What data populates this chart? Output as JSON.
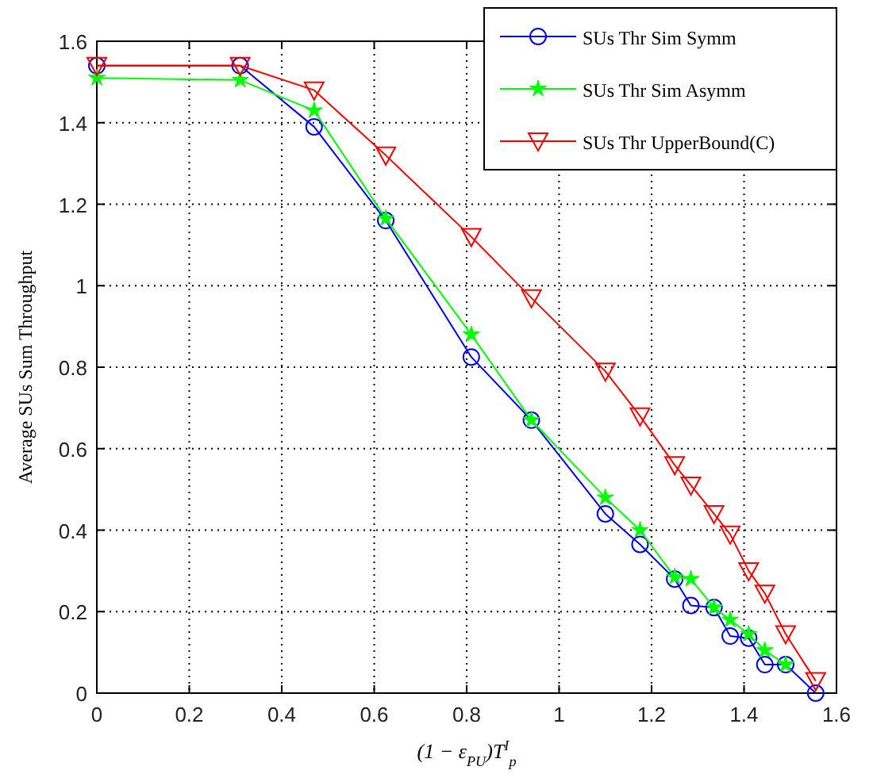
{
  "chart_data": {
    "type": "line",
    "xlabel": "(1 − ε$_{PU}$)T$^{I}$$_{p}$",
    "ylabel": "Average SUs Sum Throughput",
    "xlim": [
      0,
      1.6
    ],
    "ylim": [
      0,
      1.6
    ],
    "xticks": [
      0,
      0.2,
      0.4,
      0.6,
      0.8,
      1,
      1.2,
      1.4,
      1.6
    ],
    "yticks": [
      0,
      0.2,
      0.4,
      0.6,
      0.8,
      1,
      1.2,
      1.4,
      1.6
    ],
    "grid": true,
    "legend": "top right",
    "line_style": "solid",
    "series": [
      {
        "name": "SUs Thr Sim Symm",
        "color": "#0000ff",
        "marker": "circle",
        "x": [
          0,
          0.31,
          0.47,
          0.625,
          0.81,
          0.94,
          1.1,
          1.175,
          1.25,
          1.285,
          1.335,
          1.37,
          1.41,
          1.445,
          1.49,
          1.555
        ],
        "values": [
          1.54,
          1.54,
          1.39,
          1.16,
          0.825,
          0.67,
          0.44,
          0.365,
          0.28,
          0.215,
          0.21,
          0.14,
          0.135,
          0.07,
          0.07,
          0.0
        ]
      },
      {
        "name": "SUs Thr Sim Asymm",
        "color": "#00ff00",
        "marker": "star",
        "x": [
          0,
          0.31,
          0.47,
          0.625,
          0.81,
          0.94,
          1.1,
          1.175,
          1.25,
          1.285,
          1.335,
          1.37,
          1.41,
          1.445,
          1.49
        ],
        "values": [
          1.51,
          1.505,
          1.43,
          1.165,
          0.88,
          0.67,
          0.48,
          0.4,
          0.285,
          0.28,
          0.21,
          0.18,
          0.145,
          0.105,
          0.07
        ]
      },
      {
        "name": "SUs Thr UpperBound(C)",
        "color": "#ff0000",
        "marker": "triangle",
        "x": [
          0,
          0.31,
          0.47,
          0.625,
          0.81,
          0.94,
          1.1,
          1.175,
          1.25,
          1.285,
          1.335,
          1.37,
          1.41,
          1.445,
          1.49,
          1.555
        ],
        "values": [
          1.54,
          1.54,
          1.48,
          1.32,
          1.12,
          0.97,
          0.79,
          0.68,
          0.56,
          0.51,
          0.44,
          0.39,
          0.3,
          0.245,
          0.145,
          0.03
        ]
      }
    ]
  }
}
